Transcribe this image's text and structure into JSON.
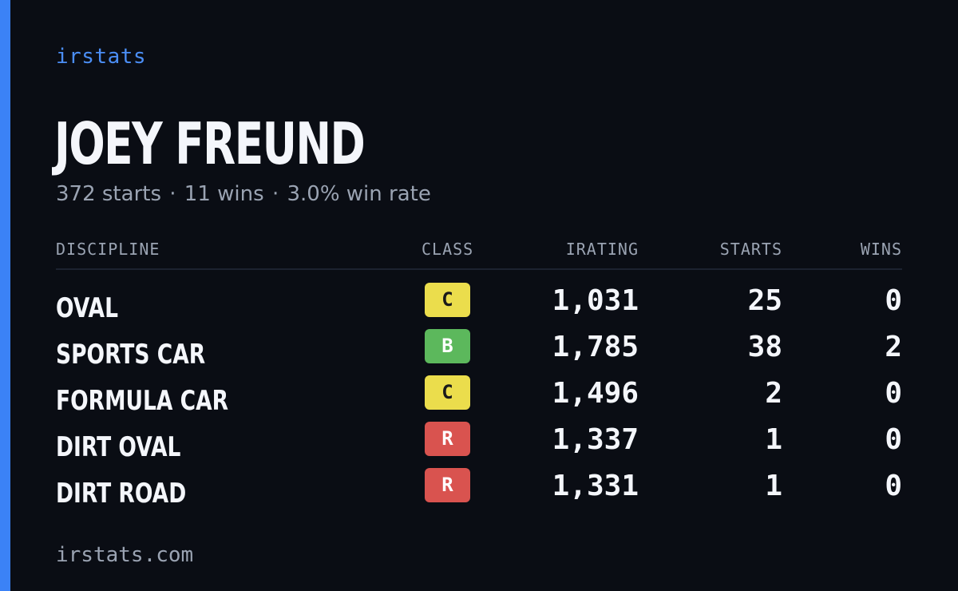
{
  "brand": "irstats",
  "player": {
    "name": "JOEY FREUND",
    "starts_text": "372 starts",
    "wins_text": "11 wins",
    "win_rate_text": "3.0% win rate",
    "separator": "·"
  },
  "table": {
    "headers": {
      "discipline": "DISCIPLINE",
      "class": "CLASS",
      "irating": "IRATING",
      "starts": "STARTS",
      "wins": "WINS"
    },
    "rows": [
      {
        "discipline": "OVAL",
        "class": "C",
        "irating": "1,031",
        "starts": "25",
        "wins": "0"
      },
      {
        "discipline": "SPORTS CAR",
        "class": "B",
        "irating": "1,785",
        "starts": "38",
        "wins": "2"
      },
      {
        "discipline": "FORMULA CAR",
        "class": "C",
        "irating": "1,496",
        "starts": "2",
        "wins": "0"
      },
      {
        "discipline": "DIRT OVAL",
        "class": "R",
        "irating": "1,337",
        "starts": "1",
        "wins": "0"
      },
      {
        "discipline": "DIRT ROAD",
        "class": "R",
        "irating": "1,331",
        "starts": "1",
        "wins": "0"
      }
    ]
  },
  "class_colors": {
    "C": {
      "bg": "#ebdd4c",
      "fg": "#1a1a1a"
    },
    "B": {
      "bg": "#5cb85c",
      "fg": "#ffffff"
    },
    "R": {
      "bg": "#d9534f",
      "fg": "#ffffff"
    }
  },
  "colors": {
    "accent": "#3b82f6",
    "background": "#0a0d14"
  },
  "footer": {
    "url": "irstats.com"
  }
}
